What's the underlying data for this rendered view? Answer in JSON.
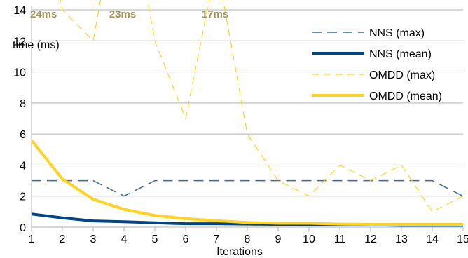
{
  "chart_data": {
    "type": "line",
    "xlabel": "Iterations",
    "ylabel": "time (ms)",
    "x": [
      1,
      2,
      3,
      4,
      5,
      6,
      7,
      8,
      9,
      10,
      11,
      12,
      13,
      14,
      15
    ],
    "xlim": [
      1,
      15
    ],
    "ylim": [
      0,
      15
    ],
    "yticks": [
      0,
      2,
      4,
      6,
      8,
      10,
      12,
      14
    ],
    "grid": "horizontal",
    "legend_position": "top-right",
    "series": [
      {
        "name": "NNS (max)",
        "style": "dashed",
        "color": "#3a6aa0",
        "values": [
          3,
          3,
          3,
          2,
          3,
          3,
          3,
          3,
          3,
          3,
          3,
          3,
          3,
          3,
          2
        ]
      },
      {
        "name": "NNS (mean)",
        "style": "solid",
        "color": "#004586",
        "values": [
          0.85,
          0.6,
          0.4,
          0.35,
          0.28,
          0.22,
          0.22,
          0.2,
          0.18,
          0.15,
          0.15,
          0.15,
          0.12,
          0.12,
          0.12
        ]
      },
      {
        "name": "OMDD (max)",
        "style": "dashed",
        "color": "#ffd320",
        "values": [
          24,
          14,
          12,
          23,
          12,
          7,
          17,
          6,
          3,
          2,
          4,
          3,
          4,
          1,
          2
        ]
      },
      {
        "name": "OMDD (mean)",
        "style": "solid",
        "color": "#ffd320",
        "values": [
          5.6,
          3.1,
          1.8,
          1.15,
          0.75,
          0.55,
          0.42,
          0.3,
          0.25,
          0.25,
          0.2,
          0.18,
          0.18,
          0.18,
          0.18
        ]
      }
    ],
    "annotations": [
      {
        "text": "24ms",
        "x": 1
      },
      {
        "text": "23ms",
        "x": 4
      },
      {
        "text": "17ms",
        "x": 7
      }
    ]
  }
}
